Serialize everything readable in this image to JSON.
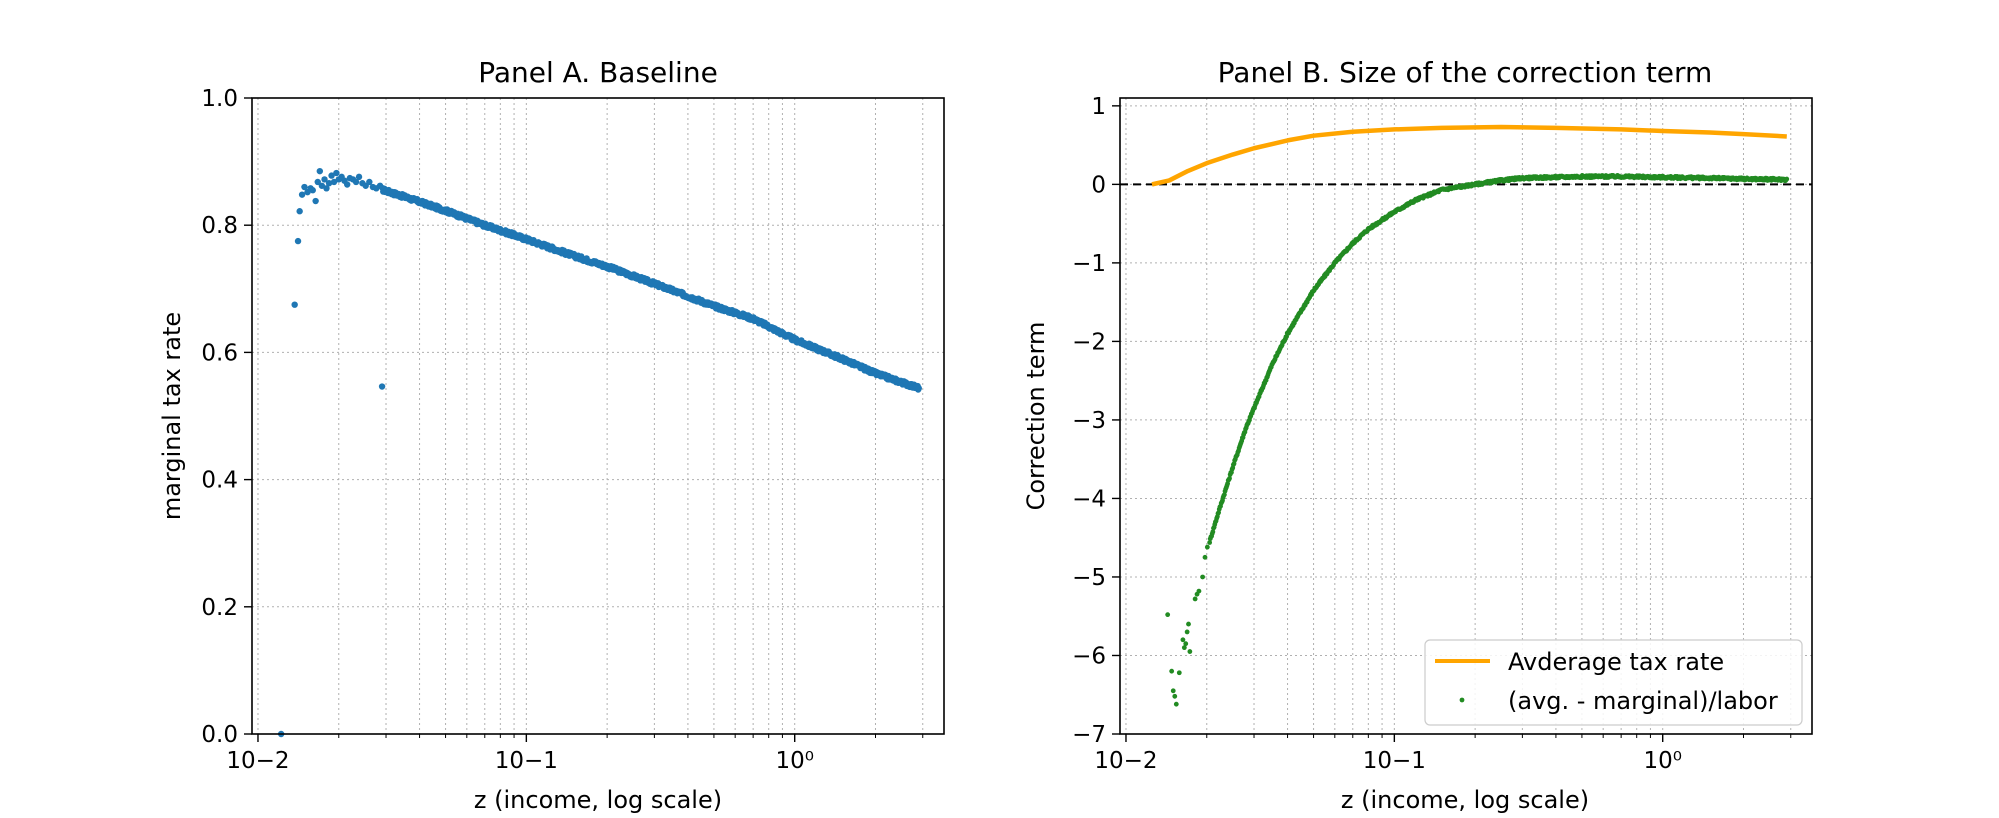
{
  "chart_data": [
    {
      "id": "panelA",
      "type": "scatter",
      "title": "Panel A. Baseline",
      "xlabel": "z (income, log scale)",
      "ylabel": "marginal tax rate",
      "xscale": "log",
      "xlim": [
        0.0095,
        3.6
      ],
      "ylim": [
        0.0,
        1.0
      ],
      "xticks": [
        {
          "value": 0.01,
          "label": "10−2"
        },
        {
          "value": 0.1,
          "label": "10−1"
        },
        {
          "value": 1,
          "label": "10⁰"
        }
      ],
      "yticks": [
        {
          "value": 0.0,
          "label": "0.0"
        },
        {
          "value": 0.2,
          "label": "0.2"
        },
        {
          "value": 0.4,
          "label": "0.4"
        },
        {
          "value": 0.6,
          "label": "0.6"
        },
        {
          "value": 0.8,
          "label": "0.8"
        },
        {
          "value": 1.0,
          "label": "1.0"
        }
      ],
      "grid": true,
      "series": [
        {
          "kind": "scatter",
          "color": "#1f77b4",
          "points": [
            [
              0.0122,
              0.0
            ],
            [
              0.0137,
              0.675
            ],
            [
              0.0141,
              0.775
            ],
            [
              0.0143,
              0.822
            ],
            [
              0.0146,
              0.848
            ],
            [
              0.0149,
              0.86
            ],
            [
              0.0153,
              0.852
            ],
            [
              0.0157,
              0.858
            ],
            [
              0.016,
              0.855
            ],
            [
              0.0164,
              0.838
            ],
            [
              0.0167,
              0.868
            ],
            [
              0.017,
              0.885
            ],
            [
              0.0173,
              0.862
            ],
            [
              0.0177,
              0.872
            ],
            [
              0.018,
              0.858
            ],
            [
              0.0184,
              0.866
            ],
            [
              0.0188,
              0.878
            ],
            [
              0.0192,
              0.868
            ],
            [
              0.0196,
              0.882
            ],
            [
              0.02,
              0.872
            ],
            [
              0.0205,
              0.876
            ],
            [
              0.021,
              0.87
            ],
            [
              0.0215,
              0.864
            ],
            [
              0.022,
              0.874
            ],
            [
              0.0226,
              0.872
            ],
            [
              0.0232,
              0.868
            ],
            [
              0.0238,
              0.876
            ],
            [
              0.0245,
              0.866
            ],
            [
              0.0252,
              0.862
            ],
            [
              0.026,
              0.868
            ],
            [
              0.0268,
              0.86
            ],
            [
              0.0276,
              0.858
            ],
            [
              0.0285,
              0.862
            ]
          ],
          "trend": [
            [
              0.029,
              0.856
            ],
            [
              0.035,
              0.845
            ],
            [
              0.05,
              0.823
            ],
            [
              0.07,
              0.8
            ],
            [
              0.1,
              0.778
            ],
            [
              0.15,
              0.752
            ],
            [
              0.2,
              0.735
            ],
            [
              0.3,
              0.708
            ],
            [
              0.5,
              0.673
            ],
            [
              0.7,
              0.653
            ],
            [
              1.0,
              0.62
            ],
            [
              1.5,
              0.59
            ],
            [
              2.0,
              0.567
            ],
            [
              2.5,
              0.553
            ],
            [
              2.9,
              0.544
            ]
          ]
        }
      ]
    },
    {
      "id": "panelB",
      "type": "line",
      "title": "Panel B. Size of the correction term",
      "xlabel": "z (income, log scale)",
      "ylabel": "Correction term",
      "xscale": "log",
      "xlim": [
        0.0095,
        3.6
      ],
      "ylim": [
        -7,
        1.1
      ],
      "xticks": [
        {
          "value": 0.01,
          "label": "10−2"
        },
        {
          "value": 0.1,
          "label": "10−1"
        },
        {
          "value": 1,
          "label": "10⁰"
        }
      ],
      "yticks": [
        {
          "value": -7,
          "label": "−7"
        },
        {
          "value": -6,
          "label": "−6"
        },
        {
          "value": -5,
          "label": "−5"
        },
        {
          "value": -4,
          "label": "−4"
        },
        {
          "value": -3,
          "label": "−3"
        },
        {
          "value": -2,
          "label": "−2"
        },
        {
          "value": -1,
          "label": "−1"
        },
        {
          "value": 0,
          "label": "0"
        },
        {
          "value": 1,
          "label": "1"
        }
      ],
      "grid": true,
      "hline": {
        "value": 0,
        "style": "dashed",
        "color": "#000000"
      },
      "legend_position": "lower-right",
      "series": [
        {
          "name": "Avderage tax rate",
          "kind": "line",
          "color": "#ffa500",
          "points": [
            [
              0.0125,
              0.0
            ],
            [
              0.0145,
              0.05
            ],
            [
              0.017,
              0.17
            ],
            [
              0.02,
              0.27
            ],
            [
              0.025,
              0.38
            ],
            [
              0.03,
              0.46
            ],
            [
              0.04,
              0.56
            ],
            [
              0.05,
              0.62
            ],
            [
              0.07,
              0.67
            ],
            [
              0.1,
              0.7
            ],
            [
              0.15,
              0.72
            ],
            [
              0.25,
              0.73
            ],
            [
              0.4,
              0.72
            ],
            [
              0.7,
              0.7
            ],
            [
              1.0,
              0.68
            ],
            [
              1.5,
              0.66
            ],
            [
              2.0,
              0.64
            ],
            [
              2.9,
              0.61
            ]
          ]
        },
        {
          "name": "(avg. - marginal)/labor",
          "kind": "scatter",
          "color": "#228b22",
          "points": [
            [
              0.0143,
              -5.48
            ],
            [
              0.0148,
              -6.2
            ],
            [
              0.015,
              -6.45
            ],
            [
              0.0152,
              -6.52
            ],
            [
              0.0154,
              -6.62
            ],
            [
              0.0158,
              -6.22
            ],
            [
              0.0163,
              -5.8
            ],
            [
              0.0165,
              -5.9
            ],
            [
              0.0167,
              -5.85
            ],
            [
              0.0169,
              -5.7
            ],
            [
              0.0171,
              -5.6
            ],
            [
              0.0173,
              -5.95
            ],
            [
              0.0181,
              -5.28
            ],
            [
              0.0184,
              -5.22
            ],
            [
              0.0187,
              -5.18
            ],
            [
              0.0193,
              -5.0
            ],
            [
              0.0197,
              -4.75
            ],
            [
              0.0201,
              -4.62
            ]
          ],
          "trend": [
            [
              0.0205,
              -4.55
            ],
            [
              0.022,
              -4.2
            ],
            [
              0.025,
              -3.6
            ],
            [
              0.028,
              -3.1
            ],
            [
              0.03,
              -2.85
            ],
            [
              0.035,
              -2.3
            ],
            [
              0.04,
              -1.9
            ],
            [
              0.05,
              -1.35
            ],
            [
              0.06,
              -1.0
            ],
            [
              0.07,
              -0.75
            ],
            [
              0.08,
              -0.57
            ],
            [
              0.1,
              -0.35
            ],
            [
              0.12,
              -0.2
            ],
            [
              0.15,
              -0.07
            ],
            [
              0.2,
              0.0
            ],
            [
              0.25,
              0.05
            ],
            [
              0.3,
              0.08
            ],
            [
              0.5,
              0.1
            ],
            [
              0.7,
              0.1
            ],
            [
              1.0,
              0.09
            ],
            [
              1.5,
              0.08
            ],
            [
              2.0,
              0.07
            ],
            [
              2.9,
              0.06
            ]
          ]
        }
      ]
    }
  ]
}
